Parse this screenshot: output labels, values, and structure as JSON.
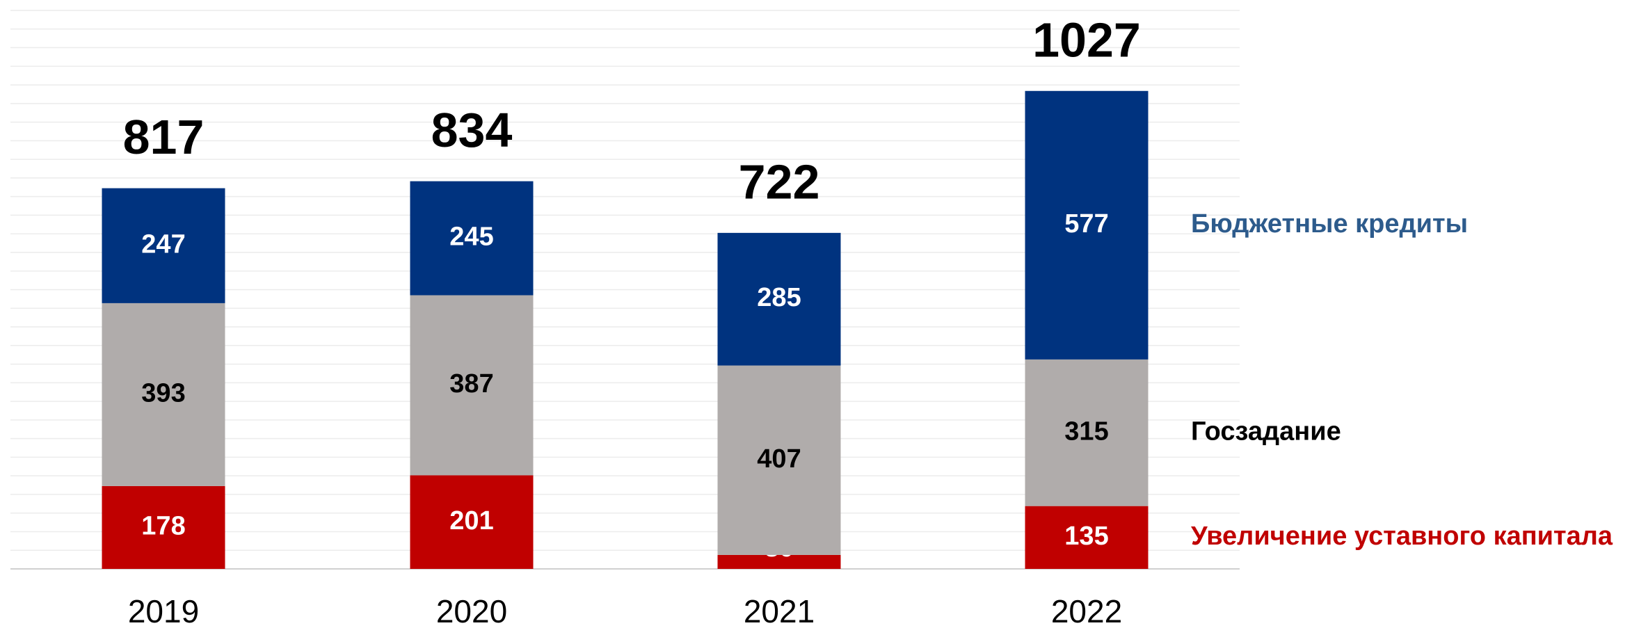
{
  "chart_data": {
    "type": "stacked_bar",
    "categories": [
      "2019",
      "2020",
      "2021",
      "2022"
    ],
    "series": [
      {
        "name": "Увеличение уставного капитала",
        "color": "#c00000",
        "values": [
          178,
          201,
          30,
          135
        ]
      },
      {
        "name": "Госзадание",
        "color": "#b0acab",
        "values": [
          393,
          387,
          407,
          315
        ]
      },
      {
        "name": "Бюджетные кредиты",
        "color": "#00337f",
        "values": [
          247,
          245,
          285,
          577
        ]
      }
    ],
    "totals": [
      817,
      834,
      722,
      1027
    ],
    "ylim": [
      0,
      1200
    ],
    "yticks": [
      0,
      40,
      80,
      120,
      160,
      200,
      240,
      280,
      320,
      360,
      400,
      440,
      480,
      520,
      560,
      600,
      640,
      680,
      720,
      760,
      800,
      840,
      880,
      920,
      960,
      1000,
      1040,
      1080,
      1120,
      1160,
      1200
    ],
    "grid": true,
    "legend": "right"
  }
}
